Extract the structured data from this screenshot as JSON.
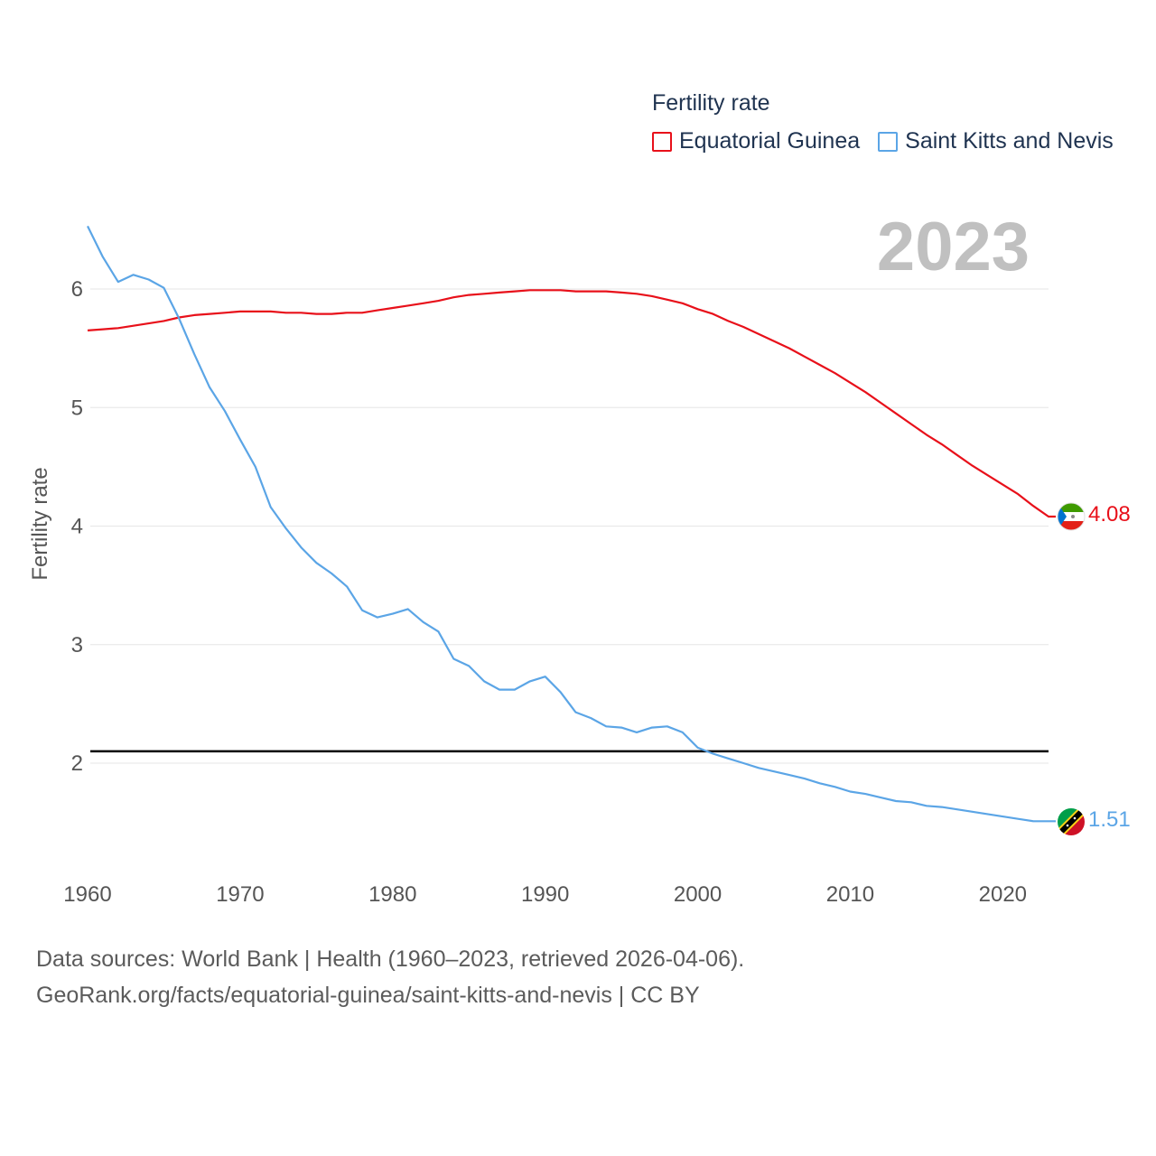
{
  "legend": {
    "title": "Fertility rate",
    "items": [
      {
        "label": "Equatorial Guinea",
        "color": "#e8101a"
      },
      {
        "label": "Saint Kitts and Nevis",
        "color": "#5ba5e6"
      }
    ]
  },
  "current_year": "2023",
  "source": {
    "line1": "Data sources: World Bank | Health (1960–2023, retrieved 2026-04-06).",
    "line2": "GeoRank.org/facts/equatorial-guinea/saint-kitts-and-nevis | CC BY"
  },
  "chart_data": {
    "type": "line",
    "title": "Fertility rate",
    "ylabel": "Fertility rate",
    "xlabel": "",
    "xlim": [
      1960,
      2023
    ],
    "ylim": [
      1.4,
      6.6
    ],
    "x_ticks": [
      1960,
      1970,
      1980,
      1990,
      2000,
      2010,
      2020
    ],
    "y_ticks": [
      2,
      3,
      4,
      5,
      6
    ],
    "reference_line": {
      "y": 2.1,
      "color": "#000000"
    },
    "end_labels": [
      "4.08",
      "1.51"
    ],
    "x": [
      1960,
      1961,
      1962,
      1963,
      1964,
      1965,
      1966,
      1967,
      1968,
      1969,
      1970,
      1971,
      1972,
      1973,
      1974,
      1975,
      1976,
      1977,
      1978,
      1979,
      1980,
      1981,
      1982,
      1983,
      1984,
      1985,
      1986,
      1987,
      1988,
      1989,
      1990,
      1991,
      1992,
      1993,
      1994,
      1995,
      1996,
      1997,
      1998,
      1999,
      2000,
      2001,
      2002,
      2003,
      2004,
      2005,
      2006,
      2007,
      2008,
      2009,
      2010,
      2011,
      2012,
      2013,
      2014,
      2015,
      2016,
      2017,
      2018,
      2019,
      2020,
      2021,
      2022,
      2023
    ],
    "series": [
      {
        "name": "Equatorial Guinea",
        "color": "#e8101a",
        "values": [
          5.65,
          5.66,
          5.67,
          5.69,
          5.71,
          5.73,
          5.76,
          5.78,
          5.79,
          5.8,
          5.81,
          5.81,
          5.81,
          5.8,
          5.8,
          5.79,
          5.79,
          5.8,
          5.8,
          5.82,
          5.84,
          5.86,
          5.88,
          5.9,
          5.93,
          5.95,
          5.96,
          5.97,
          5.98,
          5.99,
          5.99,
          5.99,
          5.98,
          5.98,
          5.98,
          5.97,
          5.96,
          5.94,
          5.91,
          5.88,
          5.83,
          5.79,
          5.73,
          5.68,
          5.62,
          5.56,
          5.5,
          5.43,
          5.36,
          5.29,
          5.21,
          5.13,
          5.04,
          4.95,
          4.86,
          4.77,
          4.69,
          4.6,
          4.51,
          4.43,
          4.35,
          4.27,
          4.17,
          4.08
        ]
      },
      {
        "name": "Saint Kitts and Nevis",
        "color": "#5ba5e6",
        "values": [
          6.53,
          6.27,
          6.06,
          6.12,
          6.08,
          6.01,
          5.75,
          5.45,
          5.17,
          4.97,
          4.73,
          4.5,
          4.16,
          3.98,
          3.82,
          3.69,
          3.6,
          3.49,
          3.29,
          3.23,
          3.26,
          3.3,
          3.19,
          3.11,
          2.88,
          2.82,
          2.69,
          2.62,
          2.62,
          2.69,
          2.73,
          2.6,
          2.43,
          2.38,
          2.31,
          2.3,
          2.26,
          2.3,
          2.31,
          2.26,
          2.13,
          2.08,
          2.04,
          2.0,
          1.96,
          1.93,
          1.9,
          1.87,
          1.83,
          1.8,
          1.76,
          1.74,
          1.71,
          1.68,
          1.67,
          1.64,
          1.63,
          1.61,
          1.59,
          1.57,
          1.55,
          1.53,
          1.51,
          1.51
        ]
      }
    ]
  }
}
